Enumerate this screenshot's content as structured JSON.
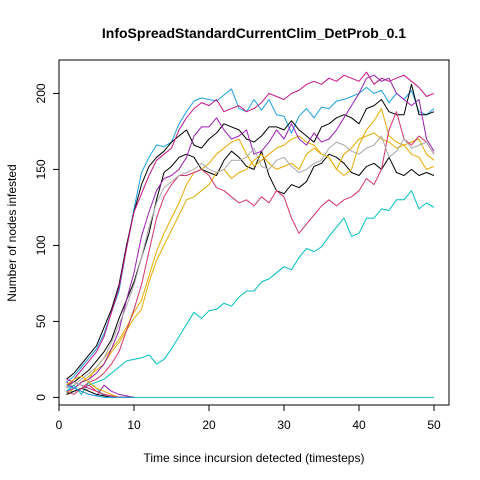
{
  "chart_data": {
    "type": "line",
    "title": "InfoSpreadStandardCurrentClim_DetProb_0.1",
    "xlabel": "Time since incursion detected (timesteps)",
    "ylabel": "Number of nodes infested",
    "xlim": [
      0,
      52
    ],
    "ylim": [
      -5,
      222
    ],
    "xticks": [
      0,
      10,
      20,
      30,
      40,
      50
    ],
    "yticks": [
      0,
      50,
      100,
      150,
      200
    ],
    "grid": false,
    "legend": "none",
    "series": [
      {
        "color": "#00BFC4",
        "x": [
          1,
          2,
          3,
          4,
          5,
          6,
          7,
          8,
          9,
          10,
          11,
          12,
          13,
          14,
          15,
          16,
          17,
          18,
          19,
          20,
          21,
          22,
          23,
          24,
          25,
          26,
          27,
          28,
          29,
          30,
          31,
          32,
          33,
          34,
          35,
          36,
          37,
          38,
          39,
          40,
          41,
          42,
          43,
          44,
          45,
          46,
          47,
          48,
          49,
          50
        ],
        "y": [
          3,
          4,
          6,
          8,
          10,
          12,
          16,
          20,
          24,
          25,
          26,
          28,
          22,
          25,
          32,
          40,
          48,
          56,
          52,
          57,
          58,
          62,
          60,
          66,
          70,
          70,
          76,
          78,
          82,
          86,
          84,
          92,
          98,
          96,
          99,
          106,
          112,
          118,
          106,
          108,
          118,
          118,
          124,
          123,
          130,
          130,
          136,
          124,
          128,
          125
        ]
      },
      {
        "color": "#1BA1E2",
        "x": [
          1,
          2,
          3,
          4,
          5,
          6,
          7,
          8,
          9,
          10,
          11,
          12,
          13,
          14,
          15,
          16,
          17,
          18,
          19,
          20,
          21,
          22,
          23,
          24,
          25,
          26,
          27,
          28,
          29,
          30,
          31,
          32,
          33,
          34,
          35,
          36,
          37,
          38,
          39,
          40,
          41,
          42,
          43,
          44,
          45,
          46,
          47,
          48,
          49,
          50
        ],
        "y": [
          10,
          14,
          20,
          26,
          32,
          42,
          56,
          70,
          98,
          124,
          148,
          158,
          166,
          165,
          168,
          180,
          188,
          195,
          197,
          196,
          195,
          199,
          203,
          190,
          188,
          196,
          189,
          196,
          186,
          185,
          174,
          185,
          190,
          184,
          191,
          190,
          195,
          196,
          198,
          200,
          204,
          200,
          202,
          194,
          200,
          196,
          202,
          188,
          186,
          190
        ]
      },
      {
        "color": "#000000",
        "x": [
          1,
          2,
          3,
          4,
          5,
          6,
          7,
          8,
          9,
          10,
          11,
          12,
          13,
          14,
          15,
          16,
          17,
          18,
          19,
          20,
          21,
          22,
          23,
          24,
          25,
          26,
          27,
          28,
          29,
          30,
          31,
          32,
          33,
          34,
          35,
          36,
          37,
          38,
          39,
          40,
          41,
          42,
          43,
          44,
          45,
          46,
          47,
          48,
          49,
          50
        ],
        "y": [
          12,
          16,
          22,
          28,
          34,
          46,
          58,
          74,
          100,
          122,
          140,
          152,
          158,
          162,
          168,
          172,
          176,
          166,
          164,
          170,
          174,
          180,
          178,
          176,
          170,
          168,
          172,
          178,
          178,
          176,
          182,
          176,
          172,
          168,
          178,
          180,
          184,
          186,
          184,
          180,
          190,
          192,
          196,
          188,
          186,
          186,
          206,
          186,
          186,
          188
        ]
      },
      {
        "color": "#000000",
        "x": [
          1,
          2,
          3,
          4,
          5,
          6,
          7,
          8,
          9,
          10,
          11,
          12,
          13,
          14,
          15,
          16,
          17,
          18,
          19,
          20,
          21,
          22,
          23,
          24,
          25,
          26,
          27,
          28,
          29,
          30,
          31,
          32,
          33,
          34,
          35,
          36,
          37,
          38,
          39,
          40,
          41,
          42,
          43,
          44,
          45,
          46,
          47,
          48,
          49,
          50
        ],
        "y": [
          8,
          10,
          14,
          18,
          24,
          30,
          38,
          52,
          64,
          76,
          92,
          108,
          130,
          148,
          152,
          158,
          160,
          158,
          150,
          148,
          146,
          156,
          162,
          158,
          152,
          150,
          162,
          146,
          136,
          134,
          140,
          138,
          142,
          152,
          154,
          160,
          158,
          154,
          148,
          146,
          152,
          154,
          150,
          158,
          148,
          146,
          150,
          146,
          148,
          146
        ]
      },
      {
        "color": "#E6AB02",
        "x": [
          1,
          2,
          3,
          4,
          5,
          6,
          7,
          8,
          9,
          10,
          11,
          12,
          13,
          14,
          15,
          16,
          17,
          18,
          19,
          20,
          21,
          22,
          23,
          24,
          25,
          26,
          27,
          28,
          29,
          30,
          31,
          32,
          33,
          34,
          35,
          36,
          37,
          38,
          39,
          40,
          41,
          42,
          43,
          44,
          45,
          46,
          47,
          48,
          49,
          50
        ],
        "y": [
          2,
          6,
          10,
          12,
          20,
          26,
          32,
          38,
          46,
          56,
          64,
          80,
          96,
          108,
          118,
          128,
          140,
          148,
          150,
          154,
          160,
          164,
          168,
          170,
          160,
          152,
          156,
          160,
          164,
          166,
          170,
          172,
          168,
          166,
          160,
          158,
          150,
          146,
          150,
          166,
          176,
          182,
          190,
          172,
          168,
          166,
          160,
          158,
          150,
          152
        ]
      },
      {
        "color": "#E6AB02",
        "x": [
          1,
          2,
          3,
          4,
          5,
          6,
          7,
          8,
          9,
          10,
          11,
          12,
          13,
          14,
          15,
          16,
          17,
          18,
          19,
          20,
          21,
          22,
          23,
          24,
          25,
          26,
          27,
          28,
          29,
          30,
          31,
          32,
          33,
          34,
          35,
          36,
          37,
          38,
          39,
          40,
          41,
          42,
          43,
          44,
          45,
          46,
          47,
          48,
          49,
          50
        ],
        "y": [
          4,
          6,
          10,
          14,
          18,
          22,
          30,
          36,
          44,
          52,
          58,
          76,
          90,
          100,
          110,
          120,
          130,
          132,
          136,
          140,
          148,
          150,
          144,
          148,
          150,
          156,
          160,
          154,
          150,
          152,
          154,
          150,
          160,
          164,
          160,
          158,
          150,
          160,
          164,
          170,
          172,
          174,
          170,
          168,
          164,
          166,
          168,
          170,
          160,
          156
        ]
      },
      {
        "color": "#C71585",
        "x": [
          1,
          2,
          3,
          4,
          5,
          6,
          7,
          8,
          9,
          10,
          11,
          12,
          13,
          14,
          15,
          16,
          17,
          18,
          19,
          20,
          21,
          22,
          23,
          24,
          25,
          26,
          27,
          28,
          29,
          30,
          31,
          32,
          33,
          34,
          35,
          36,
          37,
          38,
          39,
          40,
          41,
          42,
          43,
          44,
          45,
          46,
          47,
          48,
          49,
          50
        ],
        "y": [
          6,
          12,
          18,
          24,
          30,
          40,
          56,
          72,
          98,
          122,
          134,
          146,
          156,
          160,
          164,
          176,
          184,
          190,
          194,
          192,
          196,
          188,
          190,
          192,
          188,
          190,
          194,
          200,
          198,
          196,
          200,
          202,
          206,
          208,
          206,
          210,
          208,
          212,
          210,
          208,
          214,
          206,
          210,
          208,
          210,
          212,
          208,
          204,
          198,
          200
        ]
      },
      {
        "color": "#9A1FB0",
        "x": [
          1,
          2,
          3,
          4,
          5,
          6,
          7,
          8,
          9,
          10,
          11,
          12,
          13,
          14,
          15,
          16,
          17,
          18,
          19,
          20,
          21,
          22,
          23,
          24,
          25,
          26,
          27,
          28,
          29,
          30,
          31,
          32,
          33,
          34,
          35,
          36,
          37,
          38,
          39,
          40,
          41,
          42,
          43,
          44,
          45,
          46,
          47,
          48,
          49,
          50
        ],
        "y": [
          4,
          6,
          10,
          12,
          16,
          22,
          32,
          44,
          64,
          82,
          106,
          122,
          136,
          144,
          146,
          150,
          158,
          172,
          178,
          178,
          184,
          176,
          170,
          172,
          176,
          160,
          162,
          168,
          176,
          170,
          180,
          170,
          166,
          174,
          168,
          170,
          176,
          184,
          192,
          200,
          210,
          212,
          208,
          210,
          200,
          196,
          192,
          196,
          170,
          162
        ]
      },
      {
        "color": "#D6336C",
        "x": [
          1,
          2,
          3,
          4,
          5,
          6,
          7,
          8,
          9,
          10,
          11,
          12,
          13,
          14,
          15,
          16,
          17,
          18,
          19,
          20,
          21,
          22,
          23,
          24,
          25,
          26,
          27,
          28,
          29,
          30,
          31,
          32,
          33,
          34,
          35,
          36,
          37,
          38,
          39,
          40,
          41,
          42,
          43,
          44,
          45,
          46,
          47,
          48,
          49,
          50
        ],
        "y": [
          2,
          4,
          6,
          10,
          12,
          16,
          22,
          30,
          44,
          58,
          74,
          96,
          118,
          132,
          140,
          146,
          146,
          148,
          150,
          146,
          138,
          136,
          132,
          128,
          130,
          126,
          132,
          128,
          136,
          132,
          118,
          108,
          114,
          120,
          126,
          130,
          126,
          130,
          132,
          136,
          144,
          140,
          150,
          176,
          188,
          170,
          166,
          172,
          168,
          160
        ]
      },
      {
        "color": "#A9A9A9",
        "x": [
          1,
          2,
          3,
          4,
          5,
          6,
          7,
          8,
          9,
          10,
          11,
          12,
          13,
          14,
          15,
          16,
          17,
          18,
          19,
          20,
          21,
          22,
          23,
          24,
          25,
          26,
          27,
          28,
          29,
          30,
          31,
          32,
          33,
          34,
          35,
          36,
          37,
          38,
          39,
          40,
          41,
          42,
          43,
          44,
          45,
          46,
          47,
          48,
          49,
          50
        ],
        "y": [
          6,
          8,
          12,
          16,
          20,
          26,
          36,
          48,
          60,
          74,
          92,
          112,
          128,
          138,
          142,
          146,
          148,
          150,
          154,
          150,
          148,
          150,
          156,
          156,
          158,
          164,
          152,
          150,
          156,
          158,
          152,
          148,
          150,
          154,
          156,
          164,
          168,
          166,
          162,
          160,
          164,
          166,
          172,
          158,
          162,
          170,
          164,
          166,
          168,
          160
        ]
      },
      {
        "color": "#00BFC4",
        "x": [
          1,
          2,
          3,
          4,
          5,
          6,
          7,
          8,
          9,
          10,
          11,
          12,
          13,
          14,
          15,
          16,
          17,
          18,
          19,
          20,
          21,
          22,
          23,
          24,
          25,
          26,
          27,
          28,
          29,
          30,
          31,
          32,
          33,
          34,
          35,
          36,
          37,
          38,
          39,
          40,
          41,
          42,
          43,
          44,
          45,
          46,
          47,
          48,
          49,
          50
        ],
        "y": [
          4,
          8,
          2,
          10,
          6,
          1,
          0,
          0,
          0,
          0,
          0,
          0,
          0,
          0,
          0,
          0,
          0,
          0,
          0,
          0,
          0,
          0,
          0,
          0,
          0,
          0,
          0,
          0,
          0,
          0,
          0,
          0,
          0,
          0,
          0,
          0,
          0,
          0,
          0,
          0,
          0,
          0,
          0,
          0,
          0,
          0,
          0,
          0,
          0,
          0
        ]
      },
      {
        "color": "#9A1FB0",
        "x": [
          1,
          2,
          3,
          4,
          5,
          6,
          7,
          8,
          9,
          10
        ],
        "y": [
          10,
          6,
          4,
          2,
          1,
          8,
          4,
          2,
          1,
          0
        ]
      },
      {
        "color": "#C71585",
        "x": [
          1,
          2,
          3,
          4,
          5,
          6,
          7,
          8,
          9,
          10
        ],
        "y": [
          12,
          10,
          8,
          6,
          4,
          2,
          1,
          0,
          0,
          0
        ]
      },
      {
        "color": "#E6AB02",
        "x": [
          1,
          2,
          3,
          4,
          5,
          6,
          7,
          8,
          9,
          10
        ],
        "y": [
          8,
          12,
          14,
          10,
          6,
          4,
          2,
          0,
          0,
          0
        ]
      },
      {
        "color": "#A9A9A9",
        "x": [
          1,
          2,
          3,
          4,
          5,
          6,
          7,
          8,
          9,
          10
        ],
        "y": [
          6,
          10,
          8,
          4,
          2,
          1,
          0,
          0,
          0,
          0
        ]
      },
      {
        "color": "#000000",
        "x": [
          1,
          2,
          3,
          4,
          5,
          6,
          7,
          8,
          9,
          10
        ],
        "y": [
          2,
          4,
          6,
          4,
          2,
          1,
          0,
          0,
          0,
          0
        ]
      },
      {
        "color": "#D6336C",
        "x": [
          1,
          2,
          3,
          4,
          5,
          6,
          7,
          8,
          9,
          10
        ],
        "y": [
          4,
          2,
          6,
          8,
          4,
          2,
          1,
          0,
          0,
          0
        ]
      },
      {
        "color": "#1BA1E2",
        "x": [
          1,
          2,
          3,
          4,
          5,
          6,
          7,
          8,
          9,
          10
        ],
        "y": [
          8,
          6,
          4,
          2,
          1,
          0,
          0,
          0,
          0,
          0
        ]
      }
    ]
  }
}
